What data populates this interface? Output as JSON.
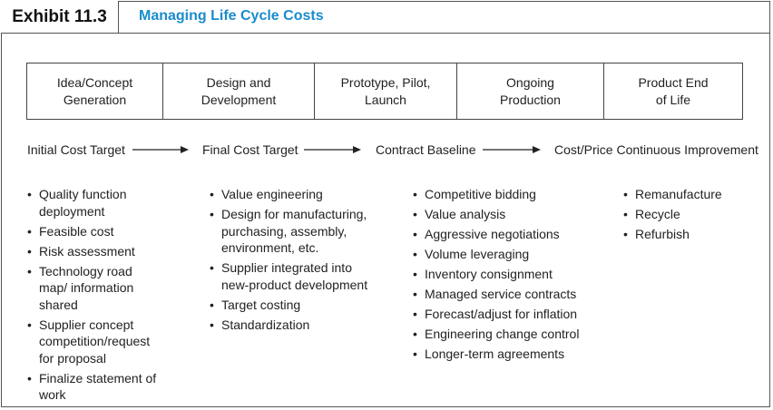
{
  "exhibit": {
    "number": "Exhibit 11.3",
    "title": "Managing Life Cycle Costs"
  },
  "stages": [
    "Idea/Concept\nGeneration",
    "Design and\nDevelopment",
    "Prototype, Pilot,\nLaunch",
    "Ongoing\nProduction",
    "Product End\nof Life"
  ],
  "cost_targets": [
    "Initial Cost Target",
    "Final Cost Target",
    "Contract Baseline",
    "Cost/Price Continuous Improvement"
  ],
  "columns": [
    [
      "Quality function deployment",
      "Feasible cost",
      "Risk assessment",
      "Technology road map/ information shared",
      "Supplier concept competition/request for proposal",
      "Finalize statement of work"
    ],
    [
      "Value engineering",
      "Design for manufacturing, purchasing, assembly, environment, etc.",
      "Supplier integrated into new-product development",
      "Target costing",
      "Standardization"
    ],
    [
      "Competitive bidding",
      "Value analysis",
      "Aggressive negotiations",
      "Volume leveraging",
      "Inventory consignment",
      "Managed service contracts",
      "Forecast/adjust for inflation",
      "Engineering change control",
      "Longer-term agreements"
    ],
    [
      "Remanufacture",
      "Recycle",
      "Refurbish"
    ]
  ]
}
